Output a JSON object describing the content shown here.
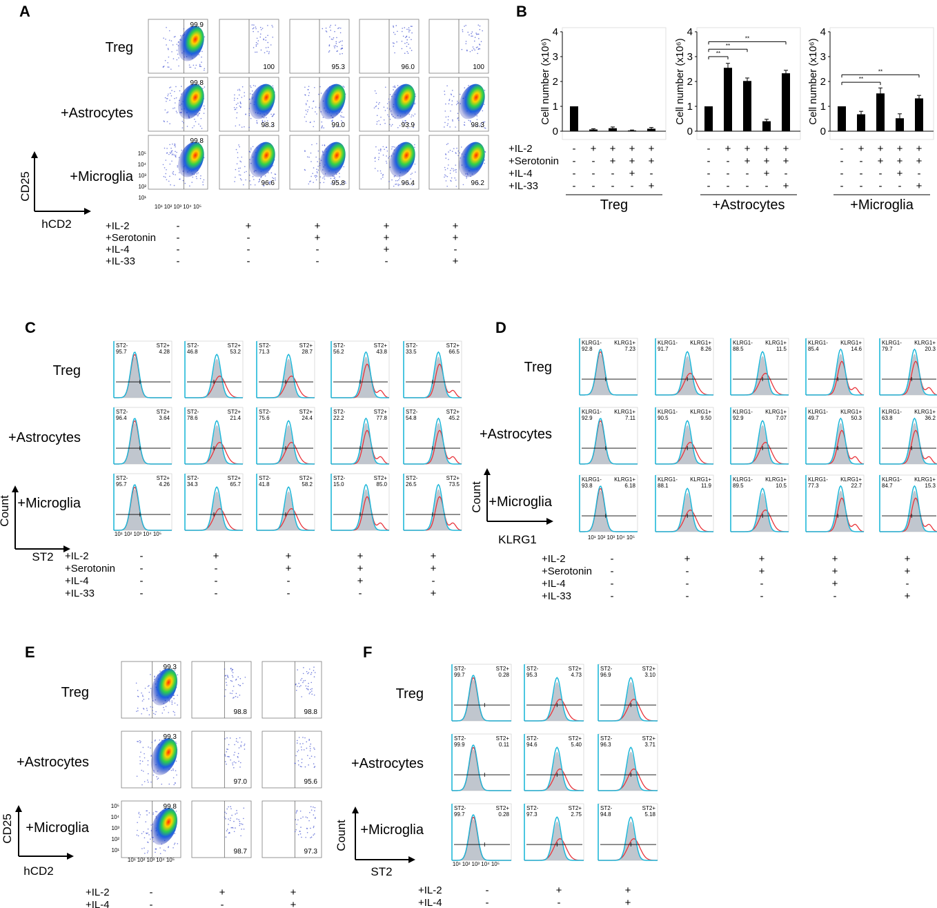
{
  "colors": {
    "hist_red": "#e8333a",
    "hist_blue": "#1eb7d9",
    "hist_fill": "#b5bcc6",
    "bar": "#000000"
  },
  "panel_labels": [
    "A",
    "B",
    "C",
    "D",
    "E",
    "F"
  ],
  "rows_main": [
    "Treg",
    "+Astrocytes",
    "+Microglia"
  ],
  "conditions4": [
    {
      "label": "+IL-2",
      "values": [
        "-",
        "+",
        "+",
        "+",
        "+"
      ]
    },
    {
      "label": "+Serotonin",
      "values": [
        "-",
        "-",
        "+",
        "+",
        "+"
      ]
    },
    {
      "label": "+IL-4",
      "values": [
        "-",
        "-",
        "-",
        "+",
        "-"
      ]
    },
    {
      "label": "+IL-33",
      "values": [
        "-",
        "-",
        "-",
        "-",
        "+"
      ]
    }
  ],
  "conditions2": [
    {
      "label": "+IL-2",
      "values": [
        "-",
        "+",
        "+"
      ]
    },
    {
      "label": "+IL-4",
      "values": [
        "-",
        "-",
        "+"
      ]
    }
  ],
  "panelA": {
    "xlabel": "hCD2",
    "ylabel": "CD25",
    "ticks_x": "10¹ 10² 10³ 10⁴ 10⁵",
    "ticks_y": [
      "10⁵",
      "10⁴",
      "10³",
      "10²",
      "10¹"
    ],
    "values": [
      [
        "99.9",
        "100",
        "95.3",
        "96.0",
        "100"
      ],
      [
        "99.8",
        "98.3",
        "99.0",
        "93.9",
        "98.3"
      ],
      [
        "99.8",
        "96.6",
        "95.8",
        "96.4",
        "96.2"
      ]
    ]
  },
  "panelE": {
    "xlabel": "hCD2",
    "ylabel": "CD25",
    "ticks_x": "10¹ 10² 10³ 10⁴ 10⁵",
    "ticks_y": [
      "10⁵",
      "10⁴",
      "10³",
      "10²",
      "10¹"
    ],
    "values": [
      [
        "99.3",
        "98.8",
        "98.8"
      ],
      [
        "99.3",
        "97.0",
        "95.6"
      ],
      [
        "99.8",
        "98.7",
        "97.3"
      ]
    ]
  },
  "panelC": {
    "xlabel": "ST2",
    "ylabel": "Count",
    "neg": "ST2-",
    "pos": "ST2+",
    "ticks_x": "10¹ 10² 10³ 10⁴ 10⁵",
    "values": [
      [
        [
          "95.7",
          "4.28"
        ],
        [
          "46.8",
          "53.2"
        ],
        [
          "71.3",
          "28.7"
        ],
        [
          "56.2",
          "43.8"
        ],
        [
          "33.5",
          "66.5"
        ]
      ],
      [
        [
          "96.4",
          "3.64"
        ],
        [
          "78.6",
          "21.4"
        ],
        [
          "75.6",
          "24.4"
        ],
        [
          "22.2",
          "77.8"
        ],
        [
          "54.8",
          "45.2"
        ]
      ],
      [
        [
          "95.7",
          "4.26"
        ],
        [
          "34.3",
          "65.7"
        ],
        [
          "41.8",
          "58.2"
        ],
        [
          "15.0",
          "85.0"
        ],
        [
          "26.5",
          "73.5"
        ]
      ]
    ]
  },
  "panelD": {
    "xlabel": "KLRG1",
    "ylabel": "Count",
    "neg": "KLRG1-",
    "pos": "KLRG1+",
    "ticks_x": "10¹ 10² 10³ 10⁴ 10⁵",
    "values": [
      [
        [
          "92.8",
          "7.23"
        ],
        [
          "91.7",
          "8.26"
        ],
        [
          "88.5",
          "11.5"
        ],
        [
          "85.4",
          "14.6"
        ],
        [
          "79.7",
          "20.3"
        ]
      ],
      [
        [
          "92.9",
          "7.11"
        ],
        [
          "90.5",
          "9.50"
        ],
        [
          "92.9",
          "7.07"
        ],
        [
          "49.7",
          "50.3"
        ],
        [
          "63.8",
          "36.2"
        ]
      ],
      [
        [
          "93.8",
          "6.18"
        ],
        [
          "88.1",
          "11.9"
        ],
        [
          "89.5",
          "10.5"
        ],
        [
          "77.3",
          "22.7"
        ],
        [
          "84.7",
          "15.3"
        ]
      ]
    ]
  },
  "panelF": {
    "xlabel": "ST2",
    "ylabel": "Count",
    "neg": "ST2-",
    "pos": "ST2+",
    "ticks_x": "10¹ 10² 10³ 10⁴ 10⁵",
    "values": [
      [
        [
          "99.7",
          "0.28"
        ],
        [
          "95.3",
          "4.73"
        ],
        [
          "96.9",
          "3.10"
        ]
      ],
      [
        [
          "99.9",
          "0.11"
        ],
        [
          "94.6",
          "5.40"
        ],
        [
          "96.3",
          "3.71"
        ]
      ],
      [
        [
          "99.7",
          "0.28"
        ],
        [
          "97.3",
          "2.75"
        ],
        [
          "94.8",
          "5.18"
        ]
      ]
    ]
  },
  "panelB": {
    "ylabel": "Cell number (x10⁶)",
    "conditions": [
      "+IL-2",
      "+Serotonin",
      "+IL-4",
      "+IL-33"
    ],
    "signs": [
      [
        "-",
        "+",
        "+",
        "+",
        "+"
      ],
      [
        "-",
        "-",
        "+",
        "+",
        "+"
      ],
      [
        "-",
        "-",
        "-",
        "+",
        "-"
      ],
      [
        "-",
        "-",
        "-",
        "-",
        "+"
      ]
    ],
    "sig": "**"
  },
  "chart_data": {
    "type": "bar",
    "ylabel": "Cell number (x10⁶)",
    "ylim": [
      0,
      4
    ],
    "yticks": [
      "0",
      "1",
      "2",
      "3",
      "4"
    ],
    "categories": [
      "-",
      "+IL-2",
      "+IL-2 +Serotonin",
      "+IL-2 +Serotonin +IL-4",
      "+IL-2 +Serotonin +IL-33"
    ],
    "series": [
      {
        "name": "Treg",
        "values": [
          1.0,
          0.07,
          0.12,
          0.03,
          0.1
        ],
        "errors": [
          0,
          0.03,
          0.05,
          0.02,
          0.05
        ],
        "significance": []
      },
      {
        "name": "+Astrocytes",
        "values": [
          1.0,
          2.55,
          2.02,
          0.4,
          2.33
        ],
        "errors": [
          0,
          0.18,
          0.12,
          0.08,
          0.12
        ],
        "significance": [
          [
            0,
            1,
            "**"
          ],
          [
            0,
            2,
            "**"
          ],
          [
            0,
            4,
            "**"
          ]
        ]
      },
      {
        "name": "+Microglia",
        "values": [
          1.0,
          0.68,
          1.52,
          0.52,
          1.32
        ],
        "errors": [
          0,
          0.12,
          0.22,
          0.18,
          0.12
        ],
        "significance": [
          [
            0,
            2,
            "**"
          ],
          [
            0,
            4,
            "**"
          ]
        ]
      }
    ]
  }
}
